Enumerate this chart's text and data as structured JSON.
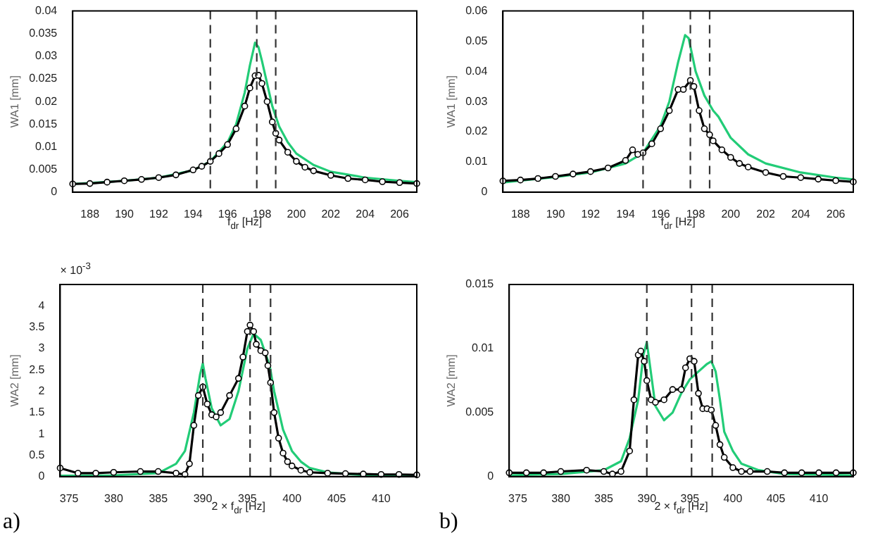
{
  "chart_data": [
    {
      "type": "line",
      "xlabel": "f$_{dr}$ [Hz]",
      "ylabel": "WA1 [mm]",
      "xlim": [
        187,
        207
      ],
      "xticks": [
        188,
        190,
        192,
        194,
        196,
        198,
        200,
        202,
        204,
        206
      ],
      "ylim": [
        0,
        0.04
      ],
      "yticks": [
        0,
        0.005,
        0.01,
        0.015,
        0.02,
        0.025,
        0.03,
        0.035,
        0.04
      ],
      "grid": false,
      "legend": false,
      "ref_lines": [
        {
          "axis": "x",
          "value": 195,
          "line_style": "dashed",
          "color": "#333333"
        },
        {
          "axis": "x",
          "value": 197.7,
          "line_style": "dashed",
          "color": "#333333"
        },
        {
          "axis": "x",
          "value": 198.8,
          "line_style": "dashed",
          "color": "#333333"
        }
      ],
      "series": [
        {
          "color": "#000000",
          "marker": "circle",
          "x": [
            187,
            188,
            189,
            190,
            191,
            192,
            193,
            194,
            194.5,
            195,
            195.5,
            196,
            196.5,
            197,
            197.3,
            197.6,
            197.8,
            198,
            198.3,
            198.6,
            198.8,
            199,
            199.5,
            200,
            200.5,
            201,
            202,
            203,
            204,
            205,
            206,
            207
          ],
          "values": [
            0.0018,
            0.0019,
            0.0022,
            0.0025,
            0.0028,
            0.0032,
            0.0038,
            0.0049,
            0.0057,
            0.0068,
            0.0085,
            0.0105,
            0.014,
            0.019,
            0.023,
            0.0257,
            0.0258,
            0.024,
            0.02,
            0.0155,
            0.013,
            0.0115,
            0.0088,
            0.0068,
            0.0055,
            0.0047,
            0.0037,
            0.003,
            0.0027,
            0.0023,
            0.0021,
            0.0019
          ]
        },
        {
          "color": "#22cc77",
          "marker": "none",
          "x": [
            187,
            190,
            192,
            194,
            195,
            196,
            196.5,
            197,
            197.3,
            197.6,
            197.8,
            198,
            198.3,
            198.6,
            199,
            199.5,
            200,
            201,
            202,
            204,
            206,
            207
          ],
          "values": [
            0.0018,
            0.0025,
            0.0032,
            0.0048,
            0.0068,
            0.011,
            0.015,
            0.022,
            0.028,
            0.033,
            0.032,
            0.029,
            0.024,
            0.019,
            0.0145,
            0.011,
            0.0085,
            0.006,
            0.0045,
            0.0032,
            0.0025,
            0.0022
          ]
        }
      ]
    },
    {
      "type": "line",
      "xlabel": "f$_{dr}$ [Hz]",
      "ylabel": "WA1 [mm]",
      "xlim": [
        187,
        207
      ],
      "xticks": [
        188,
        190,
        192,
        194,
        196,
        198,
        200,
        202,
        204,
        206
      ],
      "ylim": [
        0,
        0.06
      ],
      "yticks": [
        0,
        0.01,
        0.02,
        0.03,
        0.04,
        0.05,
        0.06
      ],
      "grid": false,
      "legend": false,
      "ref_lines": [
        {
          "axis": "x",
          "value": 195,
          "line_style": "dashed",
          "color": "#333333"
        },
        {
          "axis": "x",
          "value": 197.7,
          "line_style": "dashed",
          "color": "#333333"
        },
        {
          "axis": "x",
          "value": 198.8,
          "line_style": "dashed",
          "color": "#333333"
        }
      ],
      "series": [
        {
          "color": "#000000",
          "marker": "circle",
          "x": [
            187,
            188,
            189,
            190,
            191,
            192,
            193,
            194,
            194.4,
            194.7,
            195,
            195.5,
            196,
            196.5,
            197,
            197.3,
            197.7,
            197.9,
            198.2,
            198.5,
            198.8,
            199,
            199.5,
            200,
            200.5,
            201,
            202,
            203,
            204,
            205,
            206,
            207
          ],
          "values": [
            0.0037,
            0.004,
            0.0045,
            0.0052,
            0.006,
            0.0068,
            0.008,
            0.0105,
            0.014,
            0.0125,
            0.013,
            0.016,
            0.021,
            0.027,
            0.034,
            0.034,
            0.037,
            0.035,
            0.027,
            0.021,
            0.019,
            0.017,
            0.014,
            0.0115,
            0.0095,
            0.0083,
            0.0065,
            0.0052,
            0.0048,
            0.0043,
            0.0038,
            0.0034
          ]
        },
        {
          "color": "#22cc77",
          "marker": "none",
          "x": [
            187,
            190,
            192,
            194,
            195,
            196,
            196.5,
            197,
            197.4,
            197.6,
            198,
            198.5,
            199,
            199.3,
            200,
            201,
            202,
            204,
            206,
            207
          ],
          "values": [
            0.0032,
            0.005,
            0.0065,
            0.0095,
            0.013,
            0.022,
            0.03,
            0.043,
            0.052,
            0.051,
            0.04,
            0.032,
            0.027,
            0.025,
            0.018,
            0.0125,
            0.0095,
            0.0065,
            0.0048,
            0.0042
          ]
        }
      ]
    },
    {
      "type": "line",
      "xlabel": "2 × f$_{dr}$ [Hz]",
      "ylabel": "WA2 [mm]",
      "annotations": [
        "× 10$^{-3}$",
        "a)"
      ],
      "xlim": [
        374,
        414
      ],
      "xticks": [
        375,
        380,
        385,
        390,
        395,
        400,
        405,
        410
      ],
      "ylim": [
        0,
        4.5
      ],
      "yticks": [
        0,
        0.5,
        1,
        1.5,
        2,
        2.5,
        3,
        3.5,
        4
      ],
      "grid": false,
      "legend": false,
      "ref_lines": [
        {
          "axis": "x",
          "value": 390,
          "line_style": "dashed",
          "color": "#333333"
        },
        {
          "axis": "x",
          "value": 395.3,
          "line_style": "dashed",
          "color": "#333333"
        },
        {
          "axis": "x",
          "value": 397.6,
          "line_style": "dashed",
          "color": "#333333"
        }
      ],
      "series": [
        {
          "color": "#000000",
          "marker": "circle",
          "x": [
            374,
            376,
            378,
            380,
            383,
            385,
            387,
            388,
            388.5,
            389,
            389.5,
            390,
            390.5,
            391,
            391.5,
            392,
            393,
            394,
            394.5,
            395,
            395.3,
            395.7,
            396,
            396.5,
            397,
            397.3,
            397.6,
            398,
            398.5,
            399,
            399.5,
            400,
            401,
            402,
            404,
            406,
            408,
            410,
            412,
            414
          ],
          "values": [
            0.2,
            0.08,
            0.08,
            0.1,
            0.12,
            0.12,
            0.08,
            0.05,
            0.3,
            1.2,
            1.9,
            2.1,
            1.7,
            1.45,
            1.4,
            1.5,
            1.9,
            2.3,
            2.8,
            3.4,
            3.55,
            3.4,
            3.1,
            2.95,
            2.9,
            2.6,
            2.2,
            1.5,
            0.9,
            0.55,
            0.35,
            0.25,
            0.15,
            0.1,
            0.08,
            0.07,
            0.06,
            0.05,
            0.05,
            0.04
          ]
        },
        {
          "color": "#22cc77",
          "marker": "none",
          "x": [
            374,
            380,
            385,
            387,
            388,
            389,
            389.7,
            390,
            390.3,
            391,
            392,
            393,
            394,
            395,
            395.7,
            396.5,
            397.5,
            398,
            399,
            400,
            401,
            402,
            404,
            408,
            414
          ],
          "values": [
            0.02,
            0.03,
            0.08,
            0.3,
            0.6,
            1.5,
            2.4,
            2.65,
            2.3,
            1.6,
            1.2,
            1.35,
            2,
            3,
            3.35,
            3.2,
            2.6,
            2,
            1.1,
            0.6,
            0.35,
            0.2,
            0.1,
            0.03,
            0.02
          ]
        }
      ]
    },
    {
      "type": "line",
      "xlabel": "2 × f$_{dr}$ [Hz]",
      "ylabel": "WA2 [mm]",
      "annotations": [
        "b)"
      ],
      "xlim": [
        374,
        414
      ],
      "xticks": [
        375,
        380,
        385,
        390,
        395,
        400,
        405,
        410
      ],
      "ylim": [
        0,
        0.015
      ],
      "yticks": [
        0,
        0.005,
        0.01,
        0.015
      ],
      "grid": false,
      "legend": false,
      "ref_lines": [
        {
          "axis": "x",
          "value": 390,
          "line_style": "dashed",
          "color": "#333333"
        },
        {
          "axis": "x",
          "value": 395.2,
          "line_style": "dashed",
          "color": "#333333"
        },
        {
          "axis": "x",
          "value": 397.6,
          "line_style": "dashed",
          "color": "#333333"
        }
      ],
      "series": [
        {
          "color": "#000000",
          "marker": "circle",
          "x": [
            374,
            376,
            378,
            380,
            383,
            385,
            386,
            387,
            388,
            388.5,
            389,
            389.3,
            389.7,
            390,
            390.5,
            391,
            392,
            393,
            394,
            394.5,
            395,
            395.5,
            396,
            396.5,
            397,
            397.5,
            398,
            398.5,
            399,
            400,
            401,
            402,
            404,
            406,
            408,
            410,
            412,
            414
          ],
          "values": [
            0.0003,
            0.0003,
            0.0003,
            0.0004,
            0.0005,
            0.0004,
            0.0002,
            0.0004,
            0.002,
            0.006,
            0.0095,
            0.0098,
            0.009,
            0.0075,
            0.006,
            0.0058,
            0.006,
            0.0068,
            0.0068,
            0.0085,
            0.0092,
            0.009,
            0.0065,
            0.0053,
            0.0053,
            0.0052,
            0.004,
            0.0025,
            0.0015,
            0.0007,
            0.0004,
            0.0004,
            0.0004,
            0.0003,
            0.0003,
            0.0003,
            0.0003,
            0.0003
          ]
        },
        {
          "color": "#22cc77",
          "marker": "none",
          "x": [
            374,
            380,
            385,
            387,
            388,
            389,
            389.6,
            390,
            390.3,
            391,
            392,
            393,
            394,
            395,
            396,
            397,
            397.5,
            398,
            398.5,
            399,
            400,
            401,
            403,
            406,
            414
          ],
          "values": [
            0.0001,
            0.0002,
            0.0005,
            0.0012,
            0.003,
            0.006,
            0.0095,
            0.0105,
            0.009,
            0.0055,
            0.0044,
            0.005,
            0.0065,
            0.0076,
            0.0082,
            0.0088,
            0.009,
            0.0082,
            0.006,
            0.0035,
            0.002,
            0.001,
            0.0005,
            0.0002,
            0.0001
          ]
        }
      ]
    }
  ]
}
